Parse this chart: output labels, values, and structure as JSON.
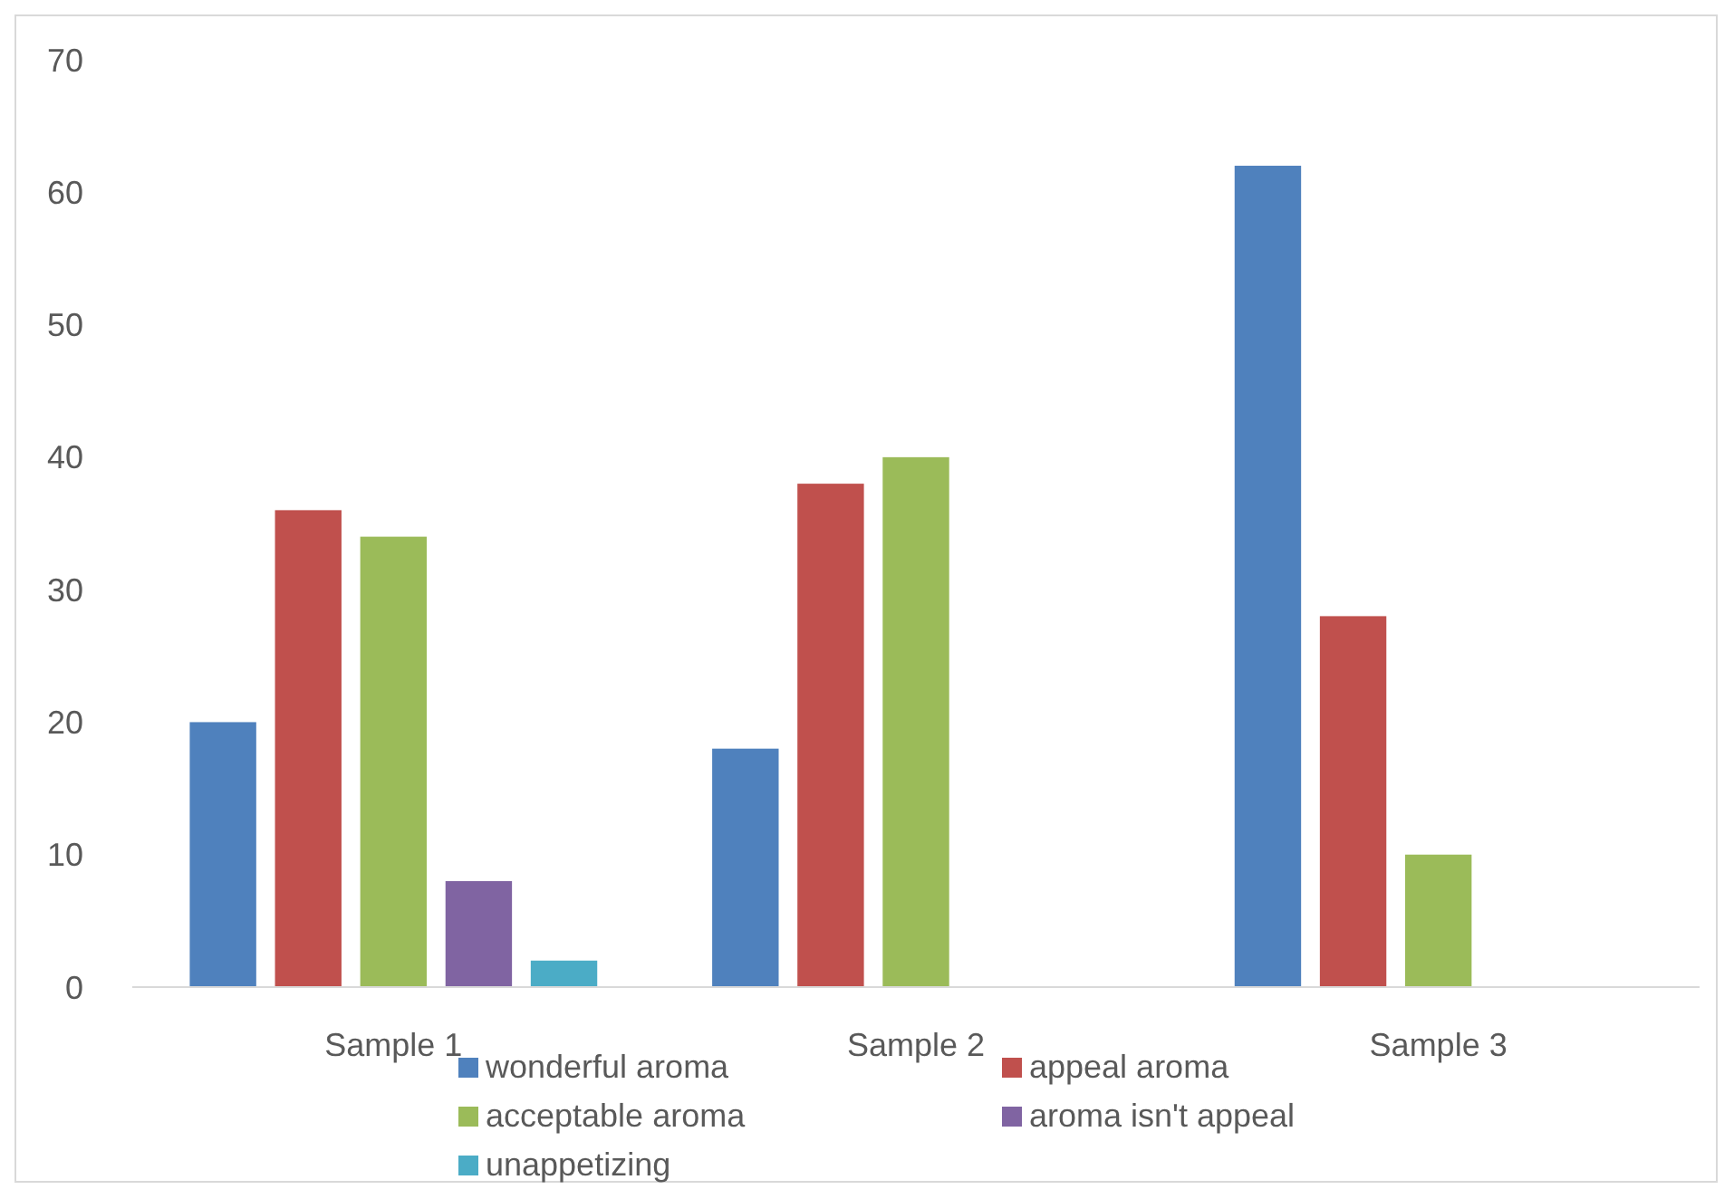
{
  "chart_data": {
    "type": "bar",
    "categories": [
      "Sample 1",
      "Sample 2",
      "Sample 3"
    ],
    "series": [
      {
        "name": "wonderful aroma",
        "color": "#4f81bd",
        "values": [
          20,
          18,
          62
        ]
      },
      {
        "name": "appeal aroma",
        "color": "#c0504d",
        "values": [
          36,
          38,
          28
        ]
      },
      {
        "name": "acceptable aroma",
        "color": "#9bbb59",
        "values": [
          34,
          40,
          10
        ]
      },
      {
        "name": "aroma isn't appeal",
        "color": "#8064a2",
        "values": [
          8,
          0,
          0
        ]
      },
      {
        "name": "unappetizing",
        "color": "#4bacc6",
        "values": [
          2,
          0,
          0
        ]
      }
    ],
    "ylim": [
      0,
      70
    ],
    "yticks": [
      0,
      10,
      20,
      30,
      40,
      50,
      60,
      70
    ],
    "grid": false,
    "legend": "bottom"
  }
}
